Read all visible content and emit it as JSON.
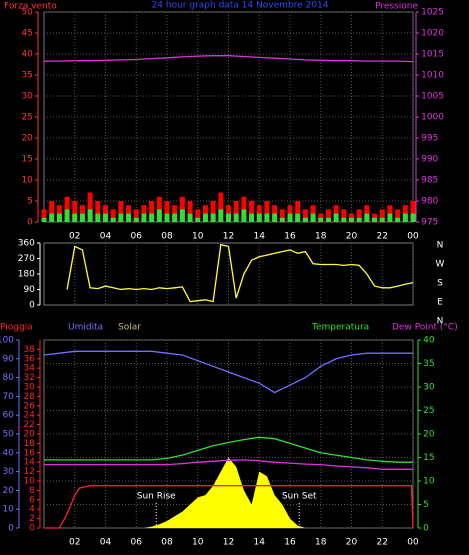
{
  "chart_data": [
    {
      "type": "combo",
      "title": "24 hour graph data 14 Novembre 2014",
      "ylabel": "Forza vento",
      "y2label": "Pressione",
      "xlim": [
        0,
        24
      ],
      "xticks": [
        {
          "value": 2,
          "label": "02"
        },
        {
          "value": 4,
          "label": "04"
        },
        {
          "value": 6,
          "label": "06"
        },
        {
          "value": 8,
          "label": "08"
        },
        10,
        12,
        14,
        16,
        18,
        20,
        22,
        {
          "value": 24,
          "label": "00"
        }
      ],
      "ylim": [
        0,
        50
      ],
      "yticks": [
        0,
        5,
        10,
        15,
        20,
        25,
        30,
        35,
        40,
        45,
        50
      ],
      "y2lim": [
        975,
        1025
      ],
      "y2ticks": [
        975,
        980,
        985,
        990,
        995,
        1000,
        1005,
        1010,
        1015,
        1020,
        1025
      ],
      "grid": true,
      "series": [
        {
          "type": "bar",
          "color": "#ff0000",
          "axis": "y",
          "x": [
            0,
            0.5,
            1,
            1.5,
            2,
            2.5,
            3,
            3.5,
            4,
            4.5,
            5,
            5.5,
            6,
            6.5,
            7,
            7.5,
            8,
            8.5,
            9,
            9.5,
            10,
            10.5,
            11,
            11.5,
            12,
            12.5,
            13,
            13.5,
            14,
            14.5,
            15,
            15.5,
            16,
            16.5,
            17,
            17.5,
            18,
            18.5,
            19,
            19.5,
            20,
            20.5,
            21,
            21.5,
            22,
            22.5,
            23,
            23.5,
            24
          ],
          "values": [
            3,
            5,
            4,
            6,
            5,
            4,
            7,
            5,
            4,
            3,
            5,
            4,
            3,
            4,
            5,
            6,
            5,
            4,
            6,
            5,
            3,
            4,
            5,
            7,
            4,
            5,
            6,
            5,
            4,
            5,
            4,
            3,
            4,
            5,
            3,
            4,
            2,
            3,
            4,
            3,
            2,
            3,
            4,
            2,
            3,
            4,
            3,
            4,
            5
          ]
        },
        {
          "type": "bar",
          "color": "#33dd33",
          "axis": "y",
          "x": [
            0,
            0.5,
            1,
            1.5,
            2,
            2.5,
            3,
            3.5,
            4,
            4.5,
            5,
            5.5,
            6,
            6.5,
            7,
            7.5,
            8,
            8.5,
            9,
            9.5,
            10,
            10.5,
            11,
            11.5,
            12,
            12.5,
            13,
            13.5,
            14,
            14.5,
            15,
            15.5,
            16,
            16.5,
            17,
            17.5,
            18,
            18.5,
            19,
            19.5,
            20,
            20.5,
            21,
            21.5,
            22,
            22.5,
            23,
            23.5,
            24
          ],
          "values": [
            1,
            2,
            2,
            3,
            2,
            2,
            3,
            2,
            2,
            1,
            2,
            2,
            1,
            2,
            2,
            3,
            2,
            2,
            3,
            2,
            1,
            2,
            2,
            3,
            2,
            2,
            3,
            2,
            2,
            2,
            2,
            1,
            2,
            2,
            1,
            2,
            1,
            1,
            2,
            1,
            1,
            1,
            2,
            1,
            1,
            2,
            1,
            2,
            2
          ]
        },
        {
          "type": "line",
          "color": "#dd33dd",
          "axis": "y2",
          "x": [
            0,
            1,
            2,
            3,
            4,
            5,
            6,
            7,
            8,
            9,
            10,
            11,
            12,
            13,
            14,
            15,
            16,
            17,
            18,
            19,
            20,
            21,
            22,
            23,
            24
          ],
          "values": [
            1013.3,
            1013.3,
            1013.4,
            1013.4,
            1013.5,
            1013.6,
            1013.7,
            1013.9,
            1014.1,
            1014.3,
            1014.5,
            1014.6,
            1014.6,
            1014.4,
            1014.2,
            1014.0,
            1013.8,
            1013.6,
            1013.5,
            1013.4,
            1013.4,
            1013.3,
            1013.3,
            1013.3,
            1013.2
          ]
        }
      ]
    },
    {
      "type": "line",
      "xlim": [
        0,
        24
      ],
      "xticks": [
        {
          "value": 2,
          "label": "02"
        },
        {
          "value": 4,
          "label": "04"
        },
        {
          "value": 6,
          "label": "06"
        },
        {
          "value": 8,
          "label": "08"
        },
        10,
        12,
        14,
        16,
        18,
        20,
        22,
        {
          "value": 24,
          "label": "00"
        }
      ],
      "ylim": [
        0,
        360
      ],
      "yticks": [
        0,
        90,
        180,
        270,
        360
      ],
      "dir_labels": [
        "N",
        "W",
        "S",
        "E",
        "N"
      ],
      "series": [
        {
          "color": "#ffff33",
          "axis": "y",
          "x": [
            0,
            0.5,
            1,
            1.5,
            2,
            2.5,
            3,
            3.5,
            4,
            4.5,
            5,
            5.5,
            6,
            6.5,
            7,
            7.5,
            8,
            8.5,
            9,
            9.5,
            10,
            10.5,
            11,
            11.5,
            12,
            12.5,
            13,
            13.5,
            14,
            14.5,
            15,
            15.5,
            16,
            16.5,
            17,
            17.5,
            18,
            18.5,
            19,
            19.5,
            20,
            20.5,
            21,
            21.5,
            22,
            22.5,
            23,
            23.5,
            24
          ],
          "values": [
            null,
            null,
            null,
            90,
            340,
            320,
            100,
            95,
            110,
            100,
            90,
            95,
            90,
            95,
            90,
            100,
            95,
            100,
            105,
            20,
            25,
            30,
            20,
            350,
            340,
            40,
            180,
            260,
            280,
            290,
            300,
            310,
            320,
            300,
            310,
            240,
            235,
            235,
            235,
            230,
            235,
            230,
            180,
            110,
            100,
            100,
            110,
            120,
            130
          ]
        }
      ]
    },
    {
      "type": "combo",
      "xlim": [
        0,
        24
      ],
      "xticks": [
        {
          "value": 2,
          "label": "02"
        },
        {
          "value": 4,
          "label": "04"
        },
        {
          "value": 6,
          "label": "06"
        },
        {
          "value": 8,
          "label": "08"
        },
        10,
        12,
        14,
        16,
        18,
        20,
        22,
        {
          "value": 24,
          "label": "00"
        }
      ],
      "ylim": [
        0,
        100
      ],
      "yticks": [
        0,
        10,
        20,
        30,
        40,
        50,
        60,
        70,
        80,
        90,
        100
      ],
      "y2lim": [
        0,
        40
      ],
      "y2ticks": [
        0,
        5,
        10,
        15,
        20,
        25,
        30,
        35,
        40
      ],
      "y3lim": [
        0,
        40
      ],
      "y3ticks": [
        0,
        2,
        4,
        6,
        8,
        10,
        12,
        14,
        16,
        18,
        20,
        22,
        24,
        26,
        28,
        30,
        32,
        34,
        36,
        38
      ],
      "grid": true,
      "annotations": [
        {
          "text": "Sun Rise",
          "x": 7.3
        },
        {
          "text": "Sun Set",
          "x": 16.6
        }
      ],
      "series": [
        {
          "name": "Solar",
          "type": "area",
          "color": "#ffff00",
          "axis": "y2",
          "x": [
            0,
            0.5,
            1,
            1.5,
            2,
            2.5,
            3,
            3.5,
            4,
            4.5,
            5,
            5.5,
            6,
            6.5,
            7,
            7.5,
            8,
            8.5,
            9,
            9.5,
            10,
            10.5,
            11,
            11.5,
            12,
            12.5,
            13,
            13.5,
            14,
            14.5,
            15,
            15.5,
            16,
            16.5,
            17,
            17.5,
            18,
            18.5,
            19,
            19.5,
            20,
            20.5,
            21,
            21.5,
            22,
            22.5,
            23,
            23.5,
            24
          ],
          "values": [
            0,
            0,
            0,
            0,
            0,
            0,
            0,
            0,
            0,
            0,
            0,
            0,
            0,
            0,
            0.3,
            0.8,
            1.5,
            2.5,
            3.5,
            5,
            6.5,
            7,
            9,
            12,
            15,
            13,
            8,
            5,
            12,
            11,
            7,
            5,
            2,
            0.5,
            0,
            0,
            0,
            0,
            0,
            0,
            0,
            0,
            0,
            0,
            0,
            0,
            0,
            0,
            0
          ]
        },
        {
          "name": "Pioggia",
          "type": "line",
          "color": "#ff2222",
          "axis": "y3",
          "x": [
            0,
            1,
            1.5,
            2,
            2.3,
            3,
            23.9,
            24
          ],
          "values": [
            0,
            0,
            3,
            7,
            8.5,
            9,
            9,
            0
          ]
        },
        {
          "name": "Umidita",
          "type": "line",
          "color": "#7070ff",
          "axis": "y",
          "x": [
            0,
            1,
            2,
            3,
            4,
            5,
            6,
            7,
            8,
            9,
            10,
            11,
            12,
            13,
            14,
            15,
            16,
            17,
            18,
            19,
            20,
            21,
            22,
            23,
            24
          ],
          "values": [
            92,
            93,
            94,
            94,
            94,
            94,
            94,
            94,
            93,
            92,
            89,
            86,
            83,
            80,
            77,
            72,
            76,
            80,
            86,
            90,
            92,
            93,
            93,
            93,
            93
          ]
        },
        {
          "name": "Temperatura",
          "type": "line",
          "color": "#33dd33",
          "axis": "y2",
          "x": [
            0,
            1,
            2,
            3,
            4,
            5,
            6,
            7,
            8,
            9,
            10,
            11,
            12,
            13,
            14,
            15,
            16,
            17,
            18,
            19,
            20,
            21,
            22,
            23,
            24
          ],
          "values": [
            14.5,
            14.5,
            14.5,
            14.5,
            14.5,
            14.5,
            14.5,
            14.5,
            14.8,
            15.5,
            16.5,
            17.5,
            18.2,
            18.8,
            19.3,
            19,
            18,
            17,
            16,
            15.5,
            15,
            14.5,
            14.2,
            14,
            14
          ]
        },
        {
          "name": "Dew Point (°C)",
          "type": "line",
          "color": "#dd33dd",
          "axis": "y2",
          "x": [
            0,
            1,
            2,
            3,
            4,
            5,
            6,
            7,
            8,
            9,
            10,
            11,
            12,
            13,
            14,
            15,
            16,
            17,
            18,
            19,
            20,
            21,
            22,
            23,
            24
          ],
          "values": [
            13.5,
            13.5,
            13.5,
            13.5,
            13.5,
            13.5,
            13.5,
            13.5,
            13.5,
            13.7,
            14,
            14.2,
            14.4,
            14.5,
            14.3,
            14,
            13.8,
            13.6,
            13.5,
            13.2,
            13,
            12.8,
            12.5,
            12.5,
            12.5
          ]
        }
      ]
    }
  ]
}
